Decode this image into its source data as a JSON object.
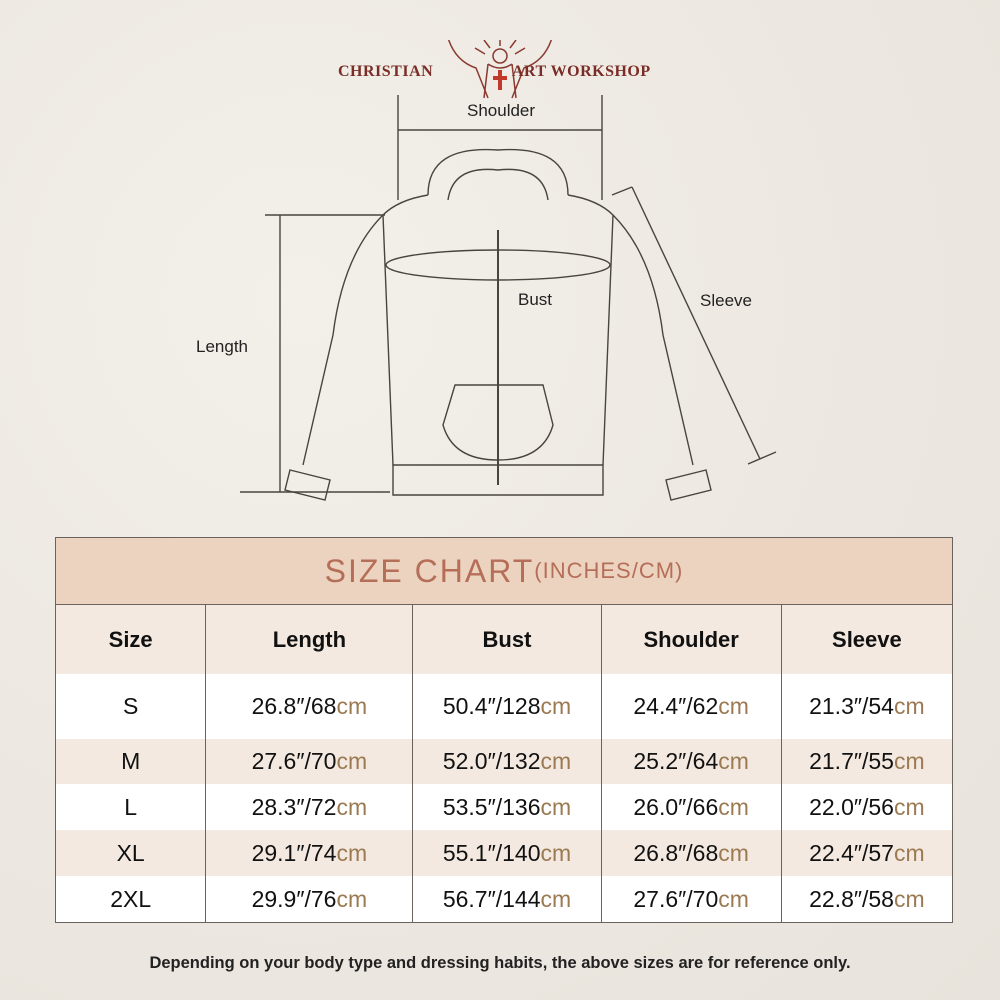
{
  "brand": {
    "left": "CHRISTIAN",
    "right": "ART WORKSHOP",
    "logo_icon": "christ-with-cross-icon",
    "color": "#7a2d26"
  },
  "diagram": {
    "shoulder": "Shoulder",
    "bust": "Bust",
    "sleeve": "Sleeve",
    "length": "Length"
  },
  "chart": {
    "title": "SIZE CHART",
    "subtitle": "(INCHES/CM)",
    "title_color": "#b56e58",
    "band_color": "#ecd3c0",
    "unit_color": "#9b7a52",
    "headers": [
      "Size",
      "Length",
      "Bust",
      "Shoulder",
      "Sleeve"
    ],
    "rows": [
      {
        "size": "S",
        "values": [
          [
            "26.8″/68",
            "cm"
          ],
          [
            "50.4″/128",
            "cm"
          ],
          [
            "24.4″/62",
            "cm"
          ],
          [
            "21.3″/54",
            "cm"
          ]
        ]
      },
      {
        "size": "M",
        "values": [
          [
            "27.6″/70",
            "cm"
          ],
          [
            "52.0″/132",
            "cm"
          ],
          [
            "25.2″/64",
            "cm"
          ],
          [
            "21.7″/55",
            "cm"
          ]
        ]
      },
      {
        "size": "L",
        "values": [
          [
            "28.3″/72",
            "cm"
          ],
          [
            "53.5″/136",
            "cm"
          ],
          [
            "26.0″/66",
            "cm"
          ],
          [
            "22.0″/56",
            "cm"
          ]
        ]
      },
      {
        "size": "XL",
        "values": [
          [
            "29.1″/74",
            "cm"
          ],
          [
            "55.1″/140",
            "cm"
          ],
          [
            "26.8″/68",
            "cm"
          ],
          [
            "22.4″/57",
            "cm"
          ]
        ]
      },
      {
        "size": "2XL",
        "values": [
          [
            "29.9″/76",
            "cm"
          ],
          [
            "56.7″/144",
            "cm"
          ],
          [
            "27.6″/70",
            "cm"
          ],
          [
            "22.8″/58",
            "cm"
          ]
        ]
      }
    ]
  },
  "note": "Depending on your body type and dressing habits, the above sizes are for reference only."
}
